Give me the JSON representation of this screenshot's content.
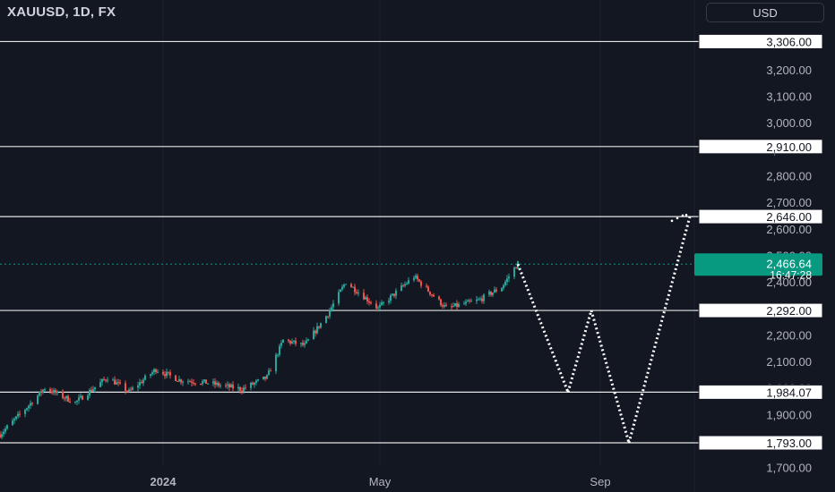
{
  "header": {
    "symbol_title": "XAUUSD, 1D, FX",
    "currency_button": "USD"
  },
  "colors": {
    "background": "#131722",
    "up": "#26a69a",
    "down": "#ef5350",
    "level_line": "#e6e6e6",
    "price_label_bg": "#089981",
    "axis_text": "#b2b5be",
    "projection": "#ffffff"
  },
  "chart_data": {
    "type": "candlestick",
    "title": "XAUUSD, 1D, FX",
    "y_axis": {
      "range": [
        1650,
        3400
      ],
      "tick_labels": [
        "1,700.00",
        "1,800.00",
        "1,900.00",
        "2,000.00",
        "2,100.00",
        "2,200.00",
        "2,300.00",
        "2,400.00",
        "2,500.00",
        "2,600.00",
        "2,700.00",
        "2,800.00",
        "2,900.00",
        "3,000.00",
        "3,100.00",
        "3,200.00"
      ],
      "ticks": [
        1700,
        1800,
        1900,
        2000,
        2100,
        2200,
        2300,
        2400,
        2500,
        2600,
        2700,
        2800,
        2900,
        3000,
        3100,
        3200
      ]
    },
    "x_axis": {
      "tick_labels": [
        "2024",
        "May",
        "Sep"
      ],
      "ticks": [
        "2024-01-01",
        "2024-05-01",
        "2024-09-01"
      ]
    },
    "horizontal_levels": [
      {
        "value": 3306.0,
        "label": "3,306.00"
      },
      {
        "value": 2910.0,
        "label": "2,910.00"
      },
      {
        "value": 2646.0,
        "label": "2,646.00"
      },
      {
        "value": 2292.0,
        "label": "2,292.00"
      },
      {
        "value": 1984.07,
        "label": "1,984.07"
      },
      {
        "value": 1793.0,
        "label": "1,793.00"
      }
    ],
    "current_price": {
      "value": 2466.64,
      "label": "2,466.64",
      "countdown": "16:47:28"
    },
    "price_waypoints": [
      {
        "x": "2023-10-02",
        "y": 1825
      },
      {
        "x": "2023-10-16",
        "y": 1920
      },
      {
        "x": "2023-10-27",
        "y": 2000
      },
      {
        "x": "2023-11-13",
        "y": 1945
      },
      {
        "x": "2023-12-01",
        "y": 2040
      },
      {
        "x": "2023-12-13",
        "y": 1985
      },
      {
        "x": "2023-12-28",
        "y": 2070
      },
      {
        "x": "2024-01-10",
        "y": 2030
      },
      {
        "x": "2024-01-25",
        "y": 2020
      },
      {
        "x": "2024-02-14",
        "y": 1995
      },
      {
        "x": "2024-02-28",
        "y": 2040
      },
      {
        "x": "2024-03-08",
        "y": 2180
      },
      {
        "x": "2024-03-20",
        "y": 2160
      },
      {
        "x": "2024-04-02",
        "y": 2280
      },
      {
        "x": "2024-04-12",
        "y": 2400
      },
      {
        "x": "2024-04-30",
        "y": 2300
      },
      {
        "x": "2024-05-20",
        "y": 2420
      },
      {
        "x": "2024-06-07",
        "y": 2300
      },
      {
        "x": "2024-06-25",
        "y": 2330
      },
      {
        "x": "2024-07-08",
        "y": 2380
      },
      {
        "x": "2024-07-17",
        "y": 2470
      }
    ],
    "projection_path": [
      {
        "x": "2024-07-17",
        "y": 2466.64
      },
      {
        "x": "2024-08-14",
        "y": 1984.07
      },
      {
        "x": "2024-08-27",
        "y": 2292.0
      },
      {
        "x": "2024-09-17",
        "y": 1793.0
      },
      {
        "x": "2024-10-21",
        "y": 2646.0
      }
    ],
    "projection_dots": [
      {
        "x": "2024-10-11",
        "y": 2630
      },
      {
        "x": "2024-10-14",
        "y": 2640
      },
      {
        "x": "2024-10-17",
        "y": 2650
      },
      {
        "x": "2024-10-19",
        "y": 2652
      }
    ]
  }
}
